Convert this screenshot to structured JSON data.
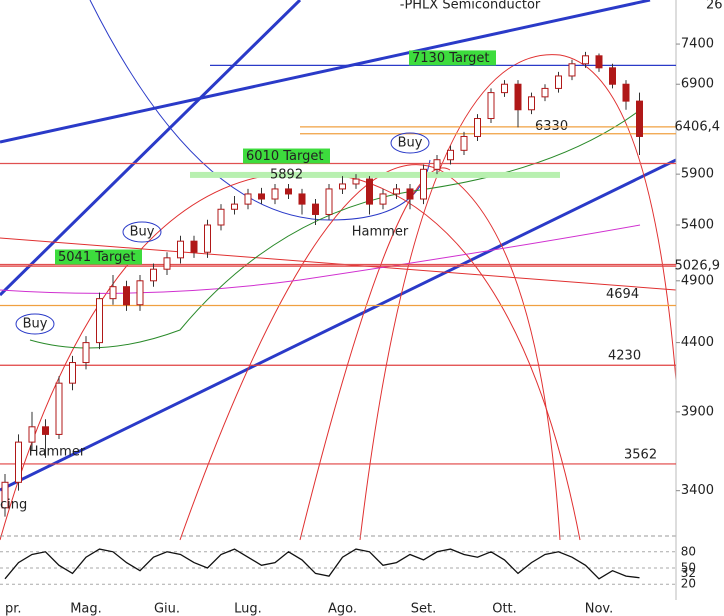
{
  "chart_data": {
    "type": "candlestick",
    "title": "-PHLX Semiconductor",
    "corner_label": "26",
    "log_scale": true,
    "ylim": [
      3175,
      7990
    ],
    "yticks": [
      3400,
      3900,
      4400,
      4900,
      5400,
      5900,
      6900,
      7400
    ],
    "categories": [
      "pr.",
      null,
      null,
      null,
      null,
      null,
      "Mag.",
      null,
      null,
      null,
      null,
      null,
      "Giu.",
      null,
      null,
      null,
      null,
      null,
      "Lug.",
      null,
      null,
      null,
      null,
      null,
      null,
      "Ago.",
      null,
      null,
      null,
      null,
      null,
      "Set.",
      null,
      null,
      null,
      null,
      null,
      "Ott.",
      null,
      null,
      null,
      null,
      null,
      null,
      "Nov.",
      null,
      null,
      null
    ],
    "open": [
      3300,
      3450,
      3700,
      3800,
      3750,
      4100,
      4250,
      4400,
      4750,
      4850,
      4700,
      4900,
      5000,
      5100,
      5250,
      5150,
      5400,
      5550,
      5600,
      5700,
      5650,
      5750,
      5700,
      5600,
      5500,
      5750,
      5800,
      5850,
      5600,
      5700,
      5750,
      5650,
      5950,
      6050,
      6150,
      6300,
      6500,
      6800,
      6900,
      6600,
      6750,
      6850,
      7000,
      7150,
      7250,
      7100,
      6900,
      6700
    ],
    "high": [
      3500,
      3750,
      3900,
      3850,
      4150,
      4300,
      4450,
      4800,
      4950,
      4900,
      4950,
      5050,
      5150,
      5300,
      5300,
      5450,
      5600,
      5680,
      5750,
      5760,
      5800,
      5800,
      5750,
      5650,
      5800,
      5880,
      5900,
      5880,
      5750,
      5800,
      5800,
      6000,
      6100,
      6200,
      6350,
      6550,
      6850,
      6950,
      6950,
      6800,
      6900,
      7050,
      7200,
      7300,
      7280,
      7150,
      6950,
      6800
    ],
    "low": [
      3250,
      3400,
      3650,
      3600,
      3720,
      4050,
      4200,
      4350,
      4700,
      4650,
      4650,
      4850,
      4950,
      5050,
      5100,
      5100,
      5350,
      5500,
      5550,
      5600,
      5600,
      5650,
      5500,
      5400,
      5450,
      5700,
      5750,
      5500,
      5550,
      5650,
      5550,
      5600,
      5900,
      6000,
      6100,
      6250,
      6450,
      6750,
      6400,
      6550,
      6700,
      6800,
      6950,
      7100,
      7050,
      6850,
      6600,
      6100
    ],
    "close": [
      3450,
      3700,
      3800,
      3750,
      4100,
      4250,
      4400,
      4750,
      4850,
      4700,
      4900,
      5000,
      5100,
      5250,
      5150,
      5400,
      5550,
      5600,
      5700,
      5650,
      5750,
      5700,
      5600,
      5500,
      5750,
      5800,
      5850,
      5600,
      5700,
      5750,
      5650,
      5950,
      6050,
      6150,
      6300,
      6500,
      6800,
      6900,
      6600,
      6750,
      6850,
      7000,
      7150,
      7250,
      7100,
      6900,
      6700,
      6300
    ],
    "levels": [
      {
        "value": 7130,
        "label": "7130 Target",
        "color": "#2a3ac8"
      },
      {
        "value": 6010,
        "label": "6010 Target",
        "color": "#e05050"
      },
      {
        "value": 5892,
        "label": "5892",
        "color": "#b8f0b0"
      },
      {
        "value": 5041,
        "label": "5041 Target",
        "color": "#e05050"
      },
      {
        "value": 6330,
        "label": "6330",
        "color": "#f0a040"
      },
      {
        "value": 4694,
        "label": "4694",
        "color": "#f0a040"
      },
      {
        "value": 4230,
        "label": "4230",
        "color": "#e04040"
      },
      {
        "value": 3562,
        "label": "3562",
        "color": "#e04040"
      },
      {
        "value": 6406.4,
        "label": "6406,4",
        "color": "#f0a040"
      },
      {
        "value": 5026.9,
        "label": "5026,9",
        "color": "#e04040"
      }
    ],
    "annotations": [
      "Buy",
      "Buy",
      "Buy",
      "Hammer",
      "Hammer",
      "cing"
    ],
    "oscillator": {
      "ylim": [
        0,
        100
      ],
      "yticks": [
        20,
        50,
        80
      ],
      "values": [
        30,
        60,
        75,
        80,
        55,
        40,
        70,
        85,
        80,
        60,
        45,
        70,
        80,
        75,
        60,
        50,
        75,
        85,
        70,
        55,
        60,
        80,
        65,
        40,
        35,
        70,
        85,
        80,
        55,
        60,
        75,
        65,
        80,
        85,
        75,
        70,
        80,
        65,
        40,
        60,
        75,
        80,
        70,
        55,
        30,
        45,
        35,
        32
      ],
      "last_label": "32"
    }
  }
}
